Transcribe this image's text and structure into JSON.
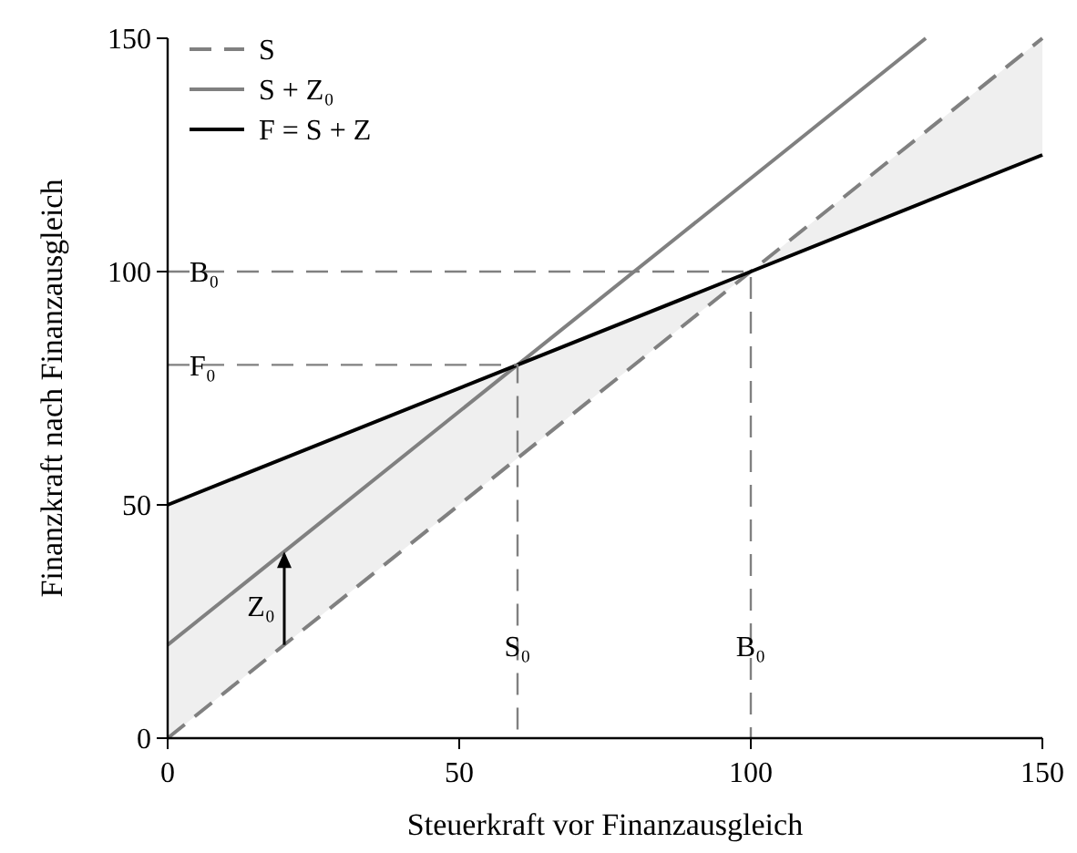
{
  "chart_data": {
    "type": "line",
    "xlabel": "Steuerkraft vor Finanzausgleich",
    "ylabel": "Finanzkraft nach Finanzausgleich",
    "xlim": [
      0,
      150
    ],
    "ylim": [
      0,
      150
    ],
    "xticks": [
      0,
      50,
      100,
      150
    ],
    "yticks": [
      0,
      50,
      100,
      150
    ],
    "grid": false,
    "legend": "top left",
    "marker": "none",
    "series": [
      {
        "name": "S",
        "color": "#808080",
        "line_style": "dashed",
        "x": [
          0,
          150
        ],
        "values": [
          0,
          150
        ]
      },
      {
        "name": "S + Z₀",
        "color": "#808080",
        "line_style": "solid",
        "x": [
          0,
          130
        ],
        "values": [
          20,
          150
        ]
      },
      {
        "name": "F = S + Z",
        "color": "#000000",
        "line_style": "solid",
        "x": [
          0,
          60,
          100,
          150
        ],
        "values": [
          50,
          80,
          100,
          125
        ],
        "lower": [
          0,
          60,
          100,
          125
        ],
        "upper": [
          50,
          80,
          100,
          150
        ]
      },
      {
        "color": "#808080",
        "line_style": "dashed",
        "x": [
          0,
          100,
          100
        ],
        "values": [
          100,
          100,
          0
        ]
      },
      {
        "color": "#808080",
        "line_style": "dashed",
        "x": [
          0,
          60,
          60
        ],
        "values": [
          80,
          80,
          0
        ]
      }
    ],
    "annotations": [
      {
        "text": "B₀",
        "x": 0,
        "y": 100
      },
      {
        "text": "F₀",
        "x": 0,
        "y": 80
      },
      {
        "text": "S₀",
        "x": 60,
        "y": 0
      },
      {
        "text": "B₀",
        "x": 100,
        "y": 0
      },
      "Z₀"
    ]
  }
}
